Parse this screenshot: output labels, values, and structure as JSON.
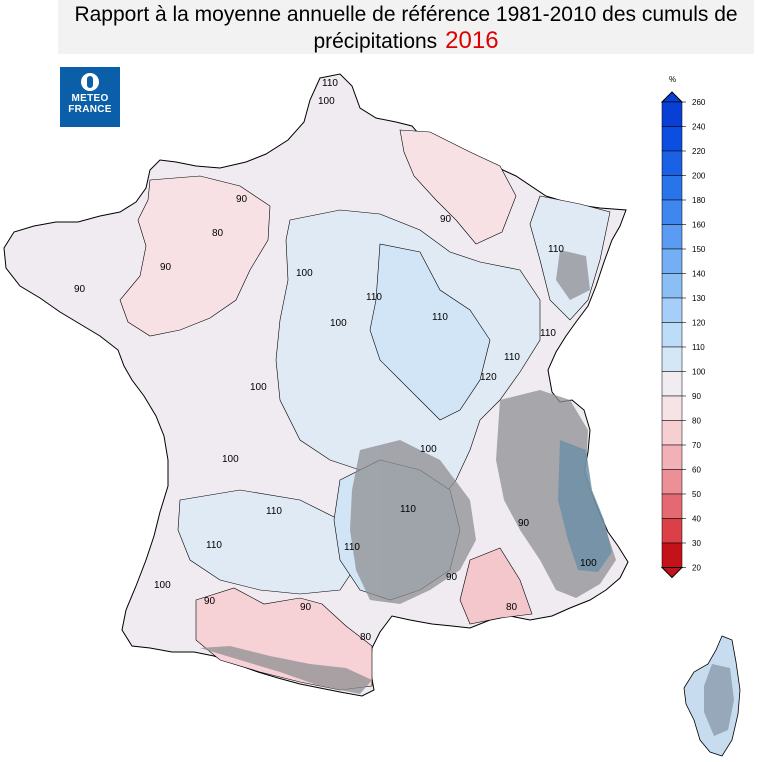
{
  "title": {
    "line1": "Rapport à la moyenne annuelle de référence 1981-2010 des cumuls de",
    "line2": "précipitations",
    "year": "2016"
  },
  "logo": {
    "line1": "METEO",
    "line2": "FRANCE"
  },
  "legend": {
    "unit": "%",
    "levels": [
      {
        "value": "260",
        "color": "#0a3fd6"
      },
      {
        "value": "240",
        "color": "#0c4fe0"
      },
      {
        "value": "220",
        "color": "#1a61e6"
      },
      {
        "value": "200",
        "color": "#2a74ea"
      },
      {
        "value": "180",
        "color": "#3f86ee"
      },
      {
        "value": "160",
        "color": "#5a9cf1"
      },
      {
        "value": "150",
        "color": "#74aef4"
      },
      {
        "value": "140",
        "color": "#8cbef6"
      },
      {
        "value": "130",
        "color": "#a6cef8"
      },
      {
        "value": "120",
        "color": "#bddcf8"
      },
      {
        "value": "110",
        "color": "#d3e7f7"
      },
      {
        "value": "100",
        "color": "#e4eef6"
      },
      {
        "value": "90",
        "color": "#f0ecf2"
      },
      {
        "value": "80",
        "color": "#f6e3e6"
      },
      {
        "value": "70",
        "color": "#f6cfd3"
      },
      {
        "value": "60",
        "color": "#f2b1b6"
      },
      {
        "value": "50",
        "color": "#ec8f96"
      },
      {
        "value": "40",
        "color": "#e46a72"
      },
      {
        "value": "30",
        "color": "#db3f48"
      },
      {
        "value": "20",
        "color": "#c4111a"
      }
    ]
  },
  "map_labels": [
    {
      "text": "110"
    },
    {
      "text": "100"
    },
    {
      "text": "90"
    },
    {
      "text": "80"
    },
    {
      "text": "120"
    }
  ]
}
